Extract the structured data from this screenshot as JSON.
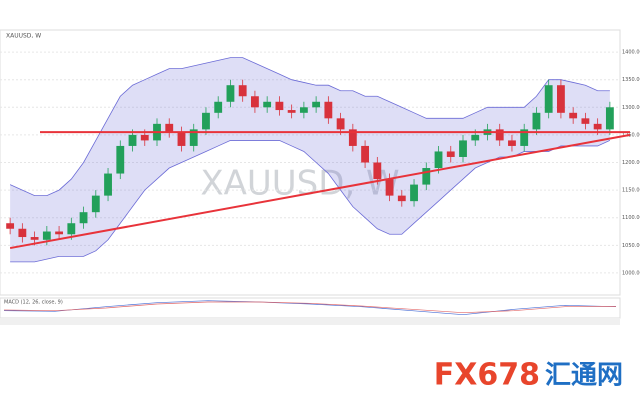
{
  "chart_data": {
    "type": "candlestick",
    "title": "XAUUSD, W",
    "watermark": "XAUUSD, W",
    "indicator": "MACD (12, 26, close, 9)",
    "logo": "FX678",
    "logo_cn": "汇通网",
    "up_color": "#22a05a",
    "down_color": "#d8323c",
    "band_color": "#6b6bd6",
    "line_color": "#e8333a",
    "grid": true,
    "ylim": [
      960,
      1440
    ],
    "yticks": [
      {
        "value": 1000,
        "label": "1000.00"
      },
      {
        "value": 1050,
        "label": "1050.00"
      },
      {
        "value": 1100,
        "label": "1100.00"
      },
      {
        "value": 1150,
        "label": "1150.00"
      },
      {
        "value": 1200,
        "label": "1200.00"
      },
      {
        "value": 1250,
        "label": "1250.00"
      },
      {
        "value": 1300,
        "label": "1300.00"
      },
      {
        "value": 1350,
        "label": "1350.00"
      },
      {
        "value": 1400,
        "label": "1400.00"
      }
    ],
    "open": [
      1090,
      1080,
      1065,
      1060,
      1075,
      1070,
      1090,
      1110,
      1140,
      1180,
      1230,
      1250,
      1240,
      1270,
      1255,
      1230,
      1260,
      1290,
      1310,
      1340,
      1320,
      1300,
      1310,
      1295,
      1290,
      1300,
      1310,
      1280,
      1260,
      1230,
      1200,
      1170,
      1140,
      1130,
      1160,
      1190,
      1220,
      1210,
      1240,
      1250,
      1260,
      1240,
      1230,
      1260,
      1290,
      1340,
      1290,
      1280,
      1270,
      1260
    ],
    "high": [
      1100,
      1090,
      1075,
      1085,
      1085,
      1100,
      1120,
      1150,
      1190,
      1240,
      1260,
      1260,
      1280,
      1280,
      1265,
      1270,
      1300,
      1320,
      1350,
      1350,
      1330,
      1320,
      1320,
      1305,
      1310,
      1320,
      1320,
      1290,
      1270,
      1240,
      1210,
      1180,
      1150,
      1170,
      1200,
      1230,
      1230,
      1250,
      1260,
      1270,
      1270,
      1250,
      1270,
      1300,
      1350,
      1350,
      1300,
      1290,
      1280,
      1310
    ],
    "low": [
      1070,
      1055,
      1050,
      1050,
      1060,
      1060,
      1080,
      1100,
      1130,
      1170,
      1220,
      1230,
      1230,
      1245,
      1220,
      1220,
      1250,
      1280,
      1300,
      1310,
      1290,
      1290,
      1285,
      1280,
      1280,
      1290,
      1270,
      1250,
      1220,
      1190,
      1160,
      1130,
      1120,
      1120,
      1150,
      1180,
      1200,
      1200,
      1230,
      1240,
      1230,
      1220,
      1220,
      1250,
      1280,
      1280,
      1270,
      1260,
      1250,
      1250
    ],
    "close": [
      1080,
      1065,
      1060,
      1075,
      1070,
      1090,
      1110,
      1140,
      1180,
      1230,
      1250,
      1240,
      1270,
      1255,
      1230,
      1260,
      1290,
      1310,
      1340,
      1320,
      1300,
      1310,
      1295,
      1290,
      1300,
      1310,
      1280,
      1260,
      1230,
      1200,
      1170,
      1140,
      1130,
      1160,
      1190,
      1220,
      1210,
      1240,
      1250,
      1260,
      1240,
      1230,
      1260,
      1290,
      1340,
      1290,
      1280,
      1270,
      1260,
      1300
    ],
    "band_upper": [
      1160,
      1150,
      1140,
      1140,
      1150,
      1170,
      1200,
      1240,
      1280,
      1320,
      1340,
      1350,
      1360,
      1370,
      1370,
      1375,
      1380,
      1385,
      1390,
      1390,
      1380,
      1370,
      1360,
      1350,
      1345,
      1340,
      1340,
      1330,
      1330,
      1320,
      1320,
      1310,
      1300,
      1290,
      1280,
      1280,
      1280,
      1280,
      1290,
      1300,
      1300,
      1300,
      1300,
      1320,
      1350,
      1350,
      1345,
      1340,
      1330,
      1330
    ],
    "band_lower": [
      1020,
      1020,
      1020,
      1025,
      1030,
      1030,
      1030,
      1040,
      1060,
      1090,
      1120,
      1150,
      1170,
      1190,
      1200,
      1210,
      1220,
      1230,
      1240,
      1240,
      1240,
      1240,
      1240,
      1230,
      1220,
      1200,
      1180,
      1150,
      1120,
      1100,
      1080,
      1070,
      1070,
      1090,
      1110,
      1130,
      1150,
      1170,
      1190,
      1200,
      1210,
      1210,
      1220,
      1220,
      1220,
      1230,
      1230,
      1230,
      1230,
      1240
    ],
    "resistance": 1255,
    "support": [
      1045,
      1250
    ],
    "macd_ylim": [
      -60,
      60
    ],
    "macd": [
      -20,
      -25,
      10,
      40,
      55,
      45,
      30,
      10,
      -20,
      -50,
      -10,
      20,
      10
    ],
    "signal": [
      -15,
      -20,
      0,
      30,
      45,
      45,
      35,
      15,
      -10,
      -35,
      -20,
      10,
      12
    ]
  }
}
